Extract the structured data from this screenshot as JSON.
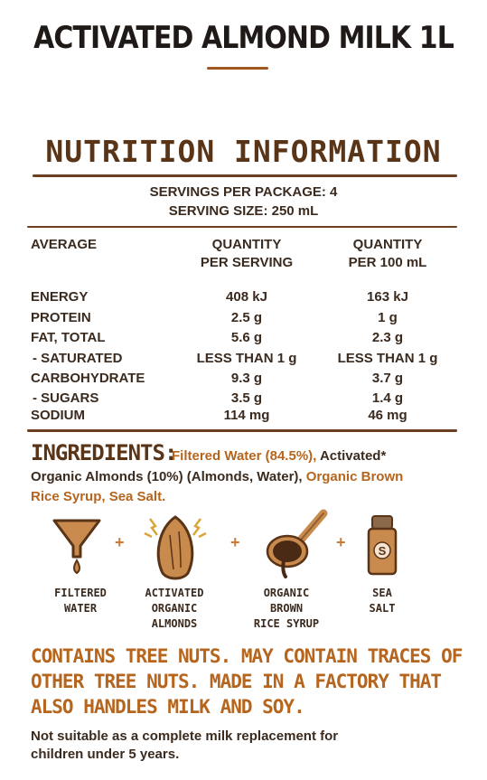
{
  "product": {
    "title": "ACTIVATED ALMOND MILK 1L"
  },
  "nutrition": {
    "heading": "NUTRITION INFORMATION",
    "servings_per_package": "SERVINGS PER PACKAGE: 4",
    "serving_size": "SERVING SIZE: 250 mL",
    "headers": {
      "average": "AVERAGE",
      "per_serving_1": "QUANTITY",
      "per_serving_2": "PER SERVING",
      "per_100_1": "QUANTITY",
      "per_100_2": "PER 100 mL"
    },
    "rows": [
      {
        "label": "ENERGY",
        "per_serving": "408 kJ",
        "per_100": "163 kJ"
      },
      {
        "label": "PROTEIN",
        "per_serving": "2.5 g",
        "per_100": "1 g"
      },
      {
        "label": "FAT, TOTAL",
        "per_serving": "5.6 g",
        "per_100": "2.3 g"
      },
      {
        "label": "- SATURATED",
        "per_serving": "LESS THAN 1 g",
        "per_100": "LESS THAN 1 g"
      },
      {
        "label": "CARBOHYDRATE",
        "per_serving": "9.3 g",
        "per_100": "3.7 g"
      },
      {
        "label": "- SUGARS",
        "per_serving": "3.5 g",
        "per_100": "1.4 g"
      },
      {
        "label": "SODIUM",
        "per_serving": "114 mg",
        "per_100": "46 mg"
      }
    ]
  },
  "ingredients": {
    "heading": "INGREDIENTS:",
    "part1": "Filtered Water (84.5%),",
    "part2": " Activated*",
    "part3": "Organic Almonds (10%) (Almonds, Water),",
    "part4": " Organic Brown",
    "part5": "Rice Syrup, Sea Salt."
  },
  "icons": [
    {
      "icon": "funnel-icon",
      "line1": "FILTERED",
      "line2": "WATER",
      "line3": ""
    },
    {
      "icon": "almond-icon",
      "line1": "ACTIVATED",
      "line2": "ORGANIC",
      "line3": "ALMONDS"
    },
    {
      "icon": "syrup-spoon-icon",
      "line1": "ORGANIC",
      "line2": "BROWN",
      "line3": "RICE SYRUP"
    },
    {
      "icon": "salt-shaker-icon",
      "line1": "SEA",
      "line2": "SALT",
      "line3": ""
    }
  ],
  "salt_letter": "S",
  "plus_sign": "+",
  "allergen": {
    "line1": "CONTAINS TREE NUTS. MAY CONTAIN TRACES OF",
    "line2": "OTHER TREE NUTS. MADE IN A FACTORY THAT",
    "line3": "ALSO HANDLES MILK AND SOY."
  },
  "note": {
    "line1": "Not suitable as a complete milk replacement for",
    "line2": "children under 5 years."
  }
}
